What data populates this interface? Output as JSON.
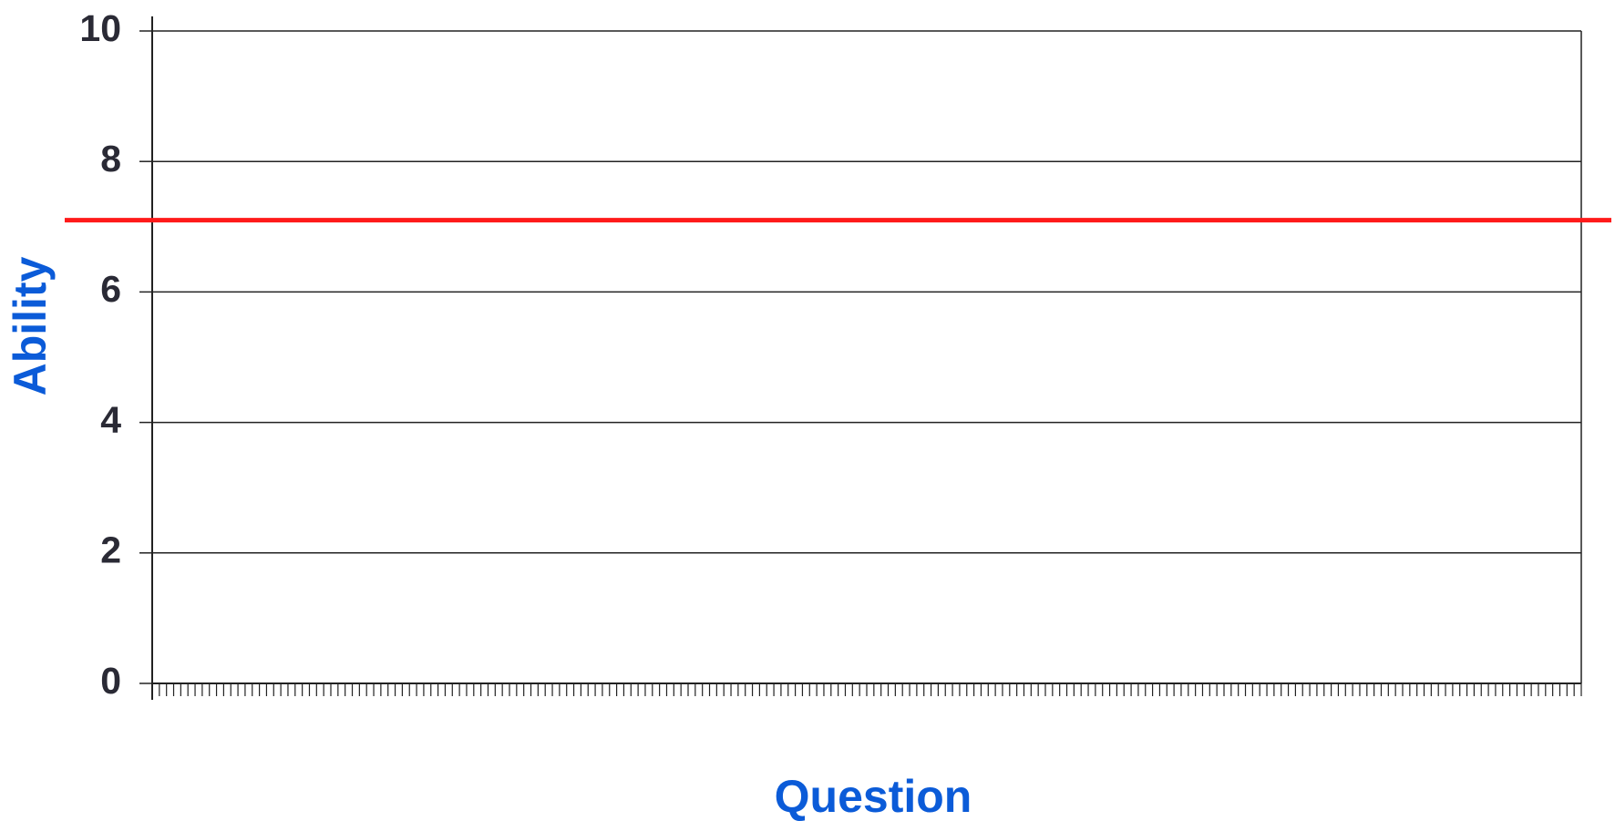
{
  "chart_data": {
    "type": "line",
    "x_label": "Question",
    "y_label": "Ability",
    "series": [],
    "reference_lines": [
      {
        "value": 7.1,
        "color": "#ff1a1a"
      }
    ],
    "ylim": [
      0,
      10
    ],
    "yticks": [
      0,
      2,
      4,
      6,
      8,
      10
    ],
    "grid": true,
    "xlim": [
      0,
      200
    ],
    "xticks": [
      0,
      1,
      2,
      3,
      4,
      5,
      6,
      7,
      8,
      9,
      10,
      11,
      12,
      13,
      14,
      15,
      16,
      17,
      18,
      19,
      20,
      21,
      22,
      23,
      24,
      25,
      26,
      27,
      28,
      29,
      30,
      31,
      32,
      33,
      34,
      35,
      36,
      37,
      38,
      39,
      40,
      41,
      42,
      43,
      44,
      45,
      46,
      47,
      48,
      49,
      50,
      51,
      52,
      53,
      54,
      55,
      56,
      57,
      58,
      59,
      60,
      61,
      62,
      63,
      64,
      65,
      66,
      67,
      68,
      69,
      70,
      71,
      72,
      73,
      74,
      75,
      76,
      77,
      78,
      79,
      80,
      81,
      82,
      83,
      84,
      85,
      86,
      87,
      88,
      89,
      90,
      91,
      92,
      93,
      94,
      95,
      96,
      97,
      98,
      99,
      100,
      101,
      102,
      103,
      104,
      105,
      106,
      107,
      108,
      109,
      110,
      111,
      112,
      113,
      114,
      115,
      116,
      117,
      118,
      119,
      120,
      121,
      122,
      123,
      124,
      125,
      126,
      127,
      128,
      129,
      130,
      131,
      132,
      133,
      134,
      135,
      136,
      137,
      138,
      139,
      140,
      141,
      142,
      143,
      144,
      145,
      146,
      147,
      148,
      149,
      150,
      151,
      152,
      153,
      154,
      155,
      156,
      157,
      158,
      159,
      160,
      161,
      162,
      163,
      164,
      165,
      166,
      167,
      168,
      169,
      170,
      171,
      172,
      173,
      174,
      175,
      176,
      177,
      178,
      179,
      180,
      181,
      182,
      183,
      184,
      185,
      186,
      187,
      188,
      189,
      190,
      191,
      192,
      193,
      194,
      195,
      196,
      197,
      198,
      199,
      200
    ]
  }
}
